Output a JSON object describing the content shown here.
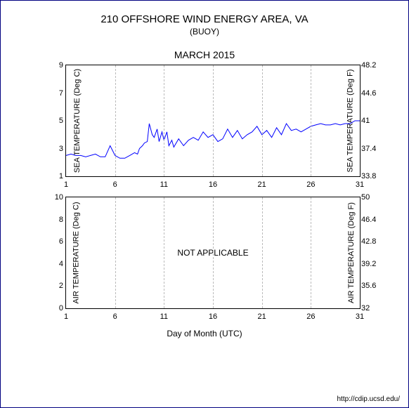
{
  "title": "210 OFFSHORE WIND ENERGY AREA, VA",
  "subtitle": "(BUOY)",
  "month": "MARCH 2015",
  "xlabel": "Day of Month (UTC)",
  "footer": "http://cdip.ucsd.edu/",
  "panel1": {
    "ylabel_left": "SEA TEMPERATURE (Deg C)",
    "ylabel_right": "SEA TEMPERATURE (Deg F)",
    "xlim": [
      1,
      31
    ],
    "ylim_left": [
      1,
      9
    ],
    "yticks_left": [
      1,
      3,
      5,
      7,
      9
    ],
    "yticks_right": [
      "33.8",
      "37.4",
      "41",
      "44.6",
      "48.2"
    ],
    "xticks": [
      1,
      6,
      11,
      16,
      21,
      26,
      31
    ],
    "grid_color": "#bbbbbb",
    "line_color": "#0000ff",
    "line_width": 1,
    "background_color": "#ffffff",
    "series_x": [
      1,
      1.5,
      2,
      2.5,
      3,
      3.5,
      4,
      4.5,
      5,
      5.5,
      6,
      6.5,
      7,
      7.5,
      8,
      8.3,
      8.5,
      8.8,
      9,
      9.3,
      9.5,
      9.8,
      10,
      10.3,
      10.5,
      10.8,
      11,
      11.3,
      11.5,
      11.8,
      12,
      12.5,
      13,
      13.5,
      14,
      14.5,
      15,
      15.5,
      16,
      16.5,
      17,
      17.5,
      18,
      18.5,
      19,
      19.5,
      20,
      20.5,
      21,
      21.5,
      22,
      22.5,
      23,
      23.5,
      24,
      24.5,
      25,
      25.5,
      26,
      26.5,
      27,
      27.5,
      28,
      28.5,
      29,
      29.5,
      30,
      30.5,
      31
    ],
    "series_y": [
      2.5,
      2.6,
      2.5,
      2.5,
      2.4,
      2.5,
      2.6,
      2.4,
      2.4,
      3.2,
      2.5,
      2.3,
      2.3,
      2.5,
      2.7,
      2.6,
      3.0,
      3.2,
      3.4,
      3.5,
      4.8,
      4.0,
      3.8,
      4.4,
      3.5,
      4.2,
      3.6,
      4.2,
      3.2,
      3.6,
      3.1,
      3.7,
      3.2,
      3.6,
      3.8,
      3.6,
      4.2,
      3.8,
      4.0,
      3.5,
      3.7,
      4.4,
      3.8,
      4.3,
      3.7,
      4.0,
      4.2,
      4.6,
      4.0,
      4.3,
      3.8,
      4.5,
      4.0,
      4.8,
      4.3,
      4.4,
      4.2,
      4.4,
      4.6,
      4.7,
      4.8,
      4.7,
      4.7,
      4.8,
      4.7,
      4.8,
      4.8,
      5.0,
      5.0
    ]
  },
  "panel2": {
    "ylabel_left": "AIR TEMPERATURE (Deg C)",
    "ylabel_right": "AIR TEMPERATURE (Deg F)",
    "xlim": [
      1,
      31
    ],
    "ylim_left": [
      0,
      10
    ],
    "yticks_left": [
      0,
      2,
      4,
      6,
      8,
      10
    ],
    "yticks_right": [
      "32",
      "35.6",
      "39.2",
      "42.8",
      "46.4",
      "50"
    ],
    "xticks": [
      1,
      6,
      11,
      16,
      21,
      26,
      31
    ],
    "grid_color": "#bbbbbb",
    "background_color": "#ffffff",
    "not_applicable_text": "NOT APPLICABLE"
  }
}
